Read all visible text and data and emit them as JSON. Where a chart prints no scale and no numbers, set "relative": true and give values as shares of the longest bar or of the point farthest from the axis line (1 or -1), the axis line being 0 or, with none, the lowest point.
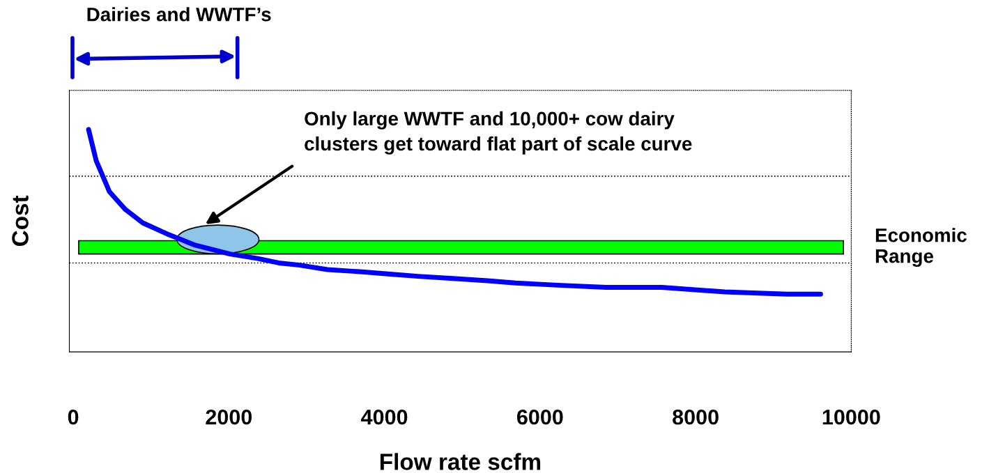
{
  "chart_data": {
    "type": "line",
    "relative": true,
    "xlabel": "Flow rate scfm",
    "ylabel": "Cost",
    "xlim": [
      -50,
      10000
    ],
    "xticks": [
      0,
      2000,
      4000,
      6000,
      8000,
      10000
    ],
    "ref_lines": [
      {
        "axis": "y",
        "value": 0.4,
        "color": "#000000",
        "line_style": "dotted"
      },
      {
        "axis": "y",
        "value": 0.79,
        "color": "#000000",
        "line_style": "dotted"
      }
    ],
    "marker": "none",
    "line_style": "solid",
    "series": [
      {
        "color": "#0000ff",
        "x": [
          197,
          295,
          466,
          671,
          895,
          1209,
          1567,
          2014,
          2372,
          2641,
          2910,
          3268,
          3715,
          4073,
          4431,
          4879,
          5327,
          5685,
          6222,
          6849,
          7565,
          8371,
          9176,
          9606
        ],
        "values": [
          1.0,
          0.86,
          0.72,
          0.64,
          0.58,
          0.53,
          0.48,
          0.44,
          0.42,
          0.4,
          0.39,
          0.37,
          0.36,
          0.35,
          0.34,
          0.33,
          0.32,
          0.31,
          0.3,
          0.29,
          0.29,
          0.27,
          0.26,
          0.26
        ]
      }
    ],
    "bands": [
      {
        "axis": "y",
        "from": 0.44,
        "to": 0.5,
        "label": "Economic\nRange",
        "color": "#00ff00"
      }
    ],
    "annotations": [
      "Dairies and WWTF’s",
      "Only large WWTF and 10,000+ cow dairy\nclusters get toward flat part of scale curve"
    ]
  }
}
